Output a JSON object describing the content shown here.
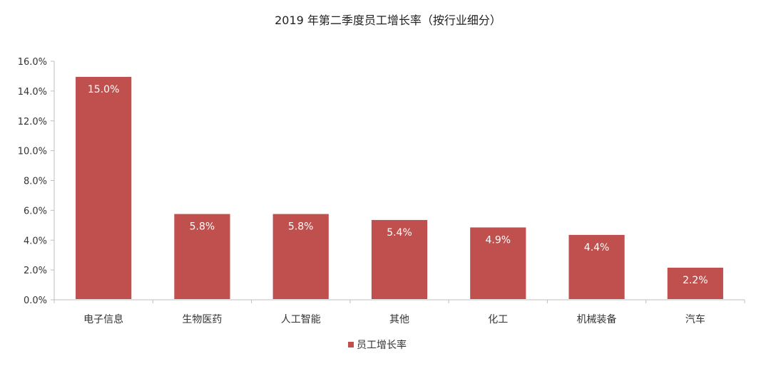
{
  "chart_data": {
    "type": "bar",
    "title": "2019 年第二季度员工增长率（按行业细分）",
    "categories": [
      "电子信息",
      "生物医药",
      "人工智能",
      "其他",
      "化工",
      "机械装备",
      "汽车"
    ],
    "series": [
      {
        "name": "员工增长率",
        "values": [
          15.0,
          5.8,
          5.8,
          5.4,
          4.9,
          4.4,
          2.2
        ],
        "data_labels": [
          "15.0%",
          "5.8%",
          "5.8%",
          "5.4%",
          "4.9%",
          "4.4%",
          "2.2%"
        ],
        "color": "#c0504d"
      }
    ],
    "ylim": [
      0,
      16
    ],
    "y_ticks": [
      0,
      2,
      4,
      6,
      8,
      10,
      12,
      14,
      16
    ],
    "y_tick_labels": [
      "0.0%",
      "2.0%",
      "4.0%",
      "6.0%",
      "8.0%",
      "10.0%",
      "12.0%",
      "14.0%",
      "16.0%"
    ],
    "xlabel": "",
    "ylabel": "",
    "grid": false,
    "legend_position": "bottom"
  }
}
